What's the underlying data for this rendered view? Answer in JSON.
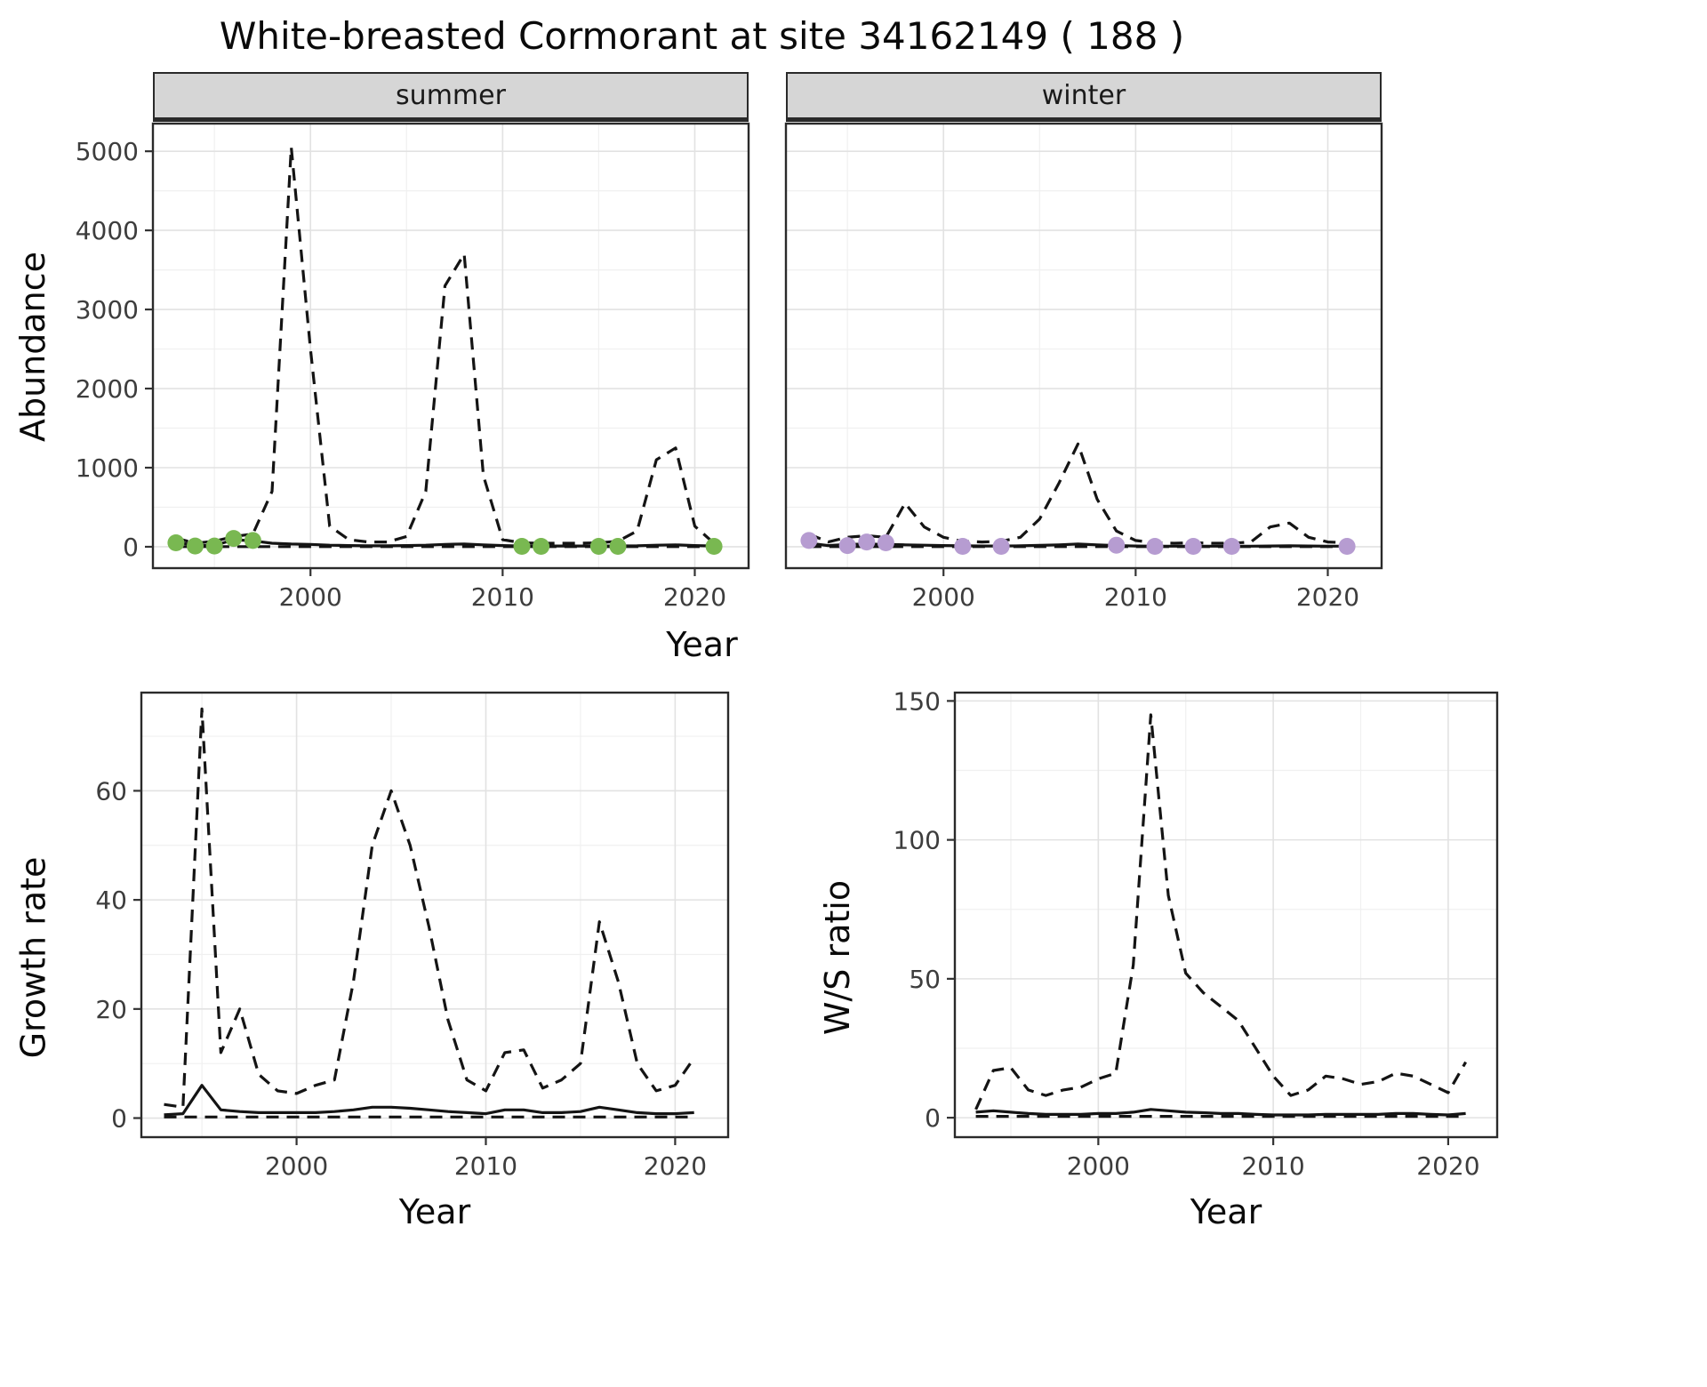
{
  "title": "White-breasted Cormorant at site 34162149 ( 188 )",
  "axis": {
    "shared_x_label": "Year"
  },
  "facets": [
    {
      "label": "summer"
    },
    {
      "label": "winter"
    }
  ],
  "colors": {
    "summer_point": "#79b851",
    "winter_point": "#b69cd1",
    "line": "#141414",
    "strip_background": "#d6d6d6",
    "grid_major": "#e2e2e2",
    "grid_minor": "#f0f0f0",
    "tick_label": "#3d3d3d"
  },
  "chart_data": [
    {
      "id": "abundance-summer",
      "type": "line",
      "facet": "summer",
      "xlabel": "Year",
      "ylabel": "Abundance",
      "x_domain": [
        1991.8,
        2022.8
      ],
      "y_domain": [
        -270,
        5350
      ],
      "x_ticks": [
        2000,
        2010,
        2020
      ],
      "x_minor": [
        1995,
        2005,
        2015
      ],
      "y_ticks": [
        0,
        1000,
        2000,
        3000,
        4000,
        5000
      ],
      "y_minor": [
        500,
        1500,
        2500,
        3500,
        4500
      ],
      "years": [
        1993,
        1994,
        1995,
        1996,
        1997,
        1998,
        1999,
        2000,
        2001,
        2002,
        2003,
        2004,
        2005,
        2006,
        2007,
        2008,
        2009,
        2010,
        2011,
        2012,
        2013,
        2014,
        2015,
        2016,
        2017,
        2018,
        2019,
        2020,
        2021
      ],
      "series": [
        {
          "name": "upper_ci",
          "style": "dashed",
          "values": [
            110,
            45,
            70,
            130,
            160,
            700,
            5050,
            2500,
            260,
            90,
            60,
            60,
            130,
            700,
            3300,
            3700,
            900,
            90,
            50,
            45,
            45,
            45,
            50,
            70,
            200,
            1100,
            1250,
            260,
            45
          ]
        },
        {
          "name": "lower_ci",
          "style": "dashed",
          "values": [
            2,
            2,
            2,
            2,
            2,
            2,
            2,
            2,
            2,
            2,
            2,
            2,
            2,
            2,
            2,
            2,
            2,
            2,
            2,
            2,
            2,
            2,
            2,
            2,
            2,
            2,
            2,
            2,
            2
          ]
        },
        {
          "name": "median",
          "style": "solid",
          "values": [
            60,
            15,
            15,
            90,
            75,
            45,
            35,
            30,
            20,
            15,
            12,
            12,
            15,
            20,
            30,
            35,
            25,
            15,
            10,
            10,
            10,
            10,
            10,
            10,
            12,
            20,
            25,
            15,
            10
          ]
        }
      ],
      "points": {
        "name": "observed_counts",
        "color": "#79b851",
        "x": [
          1993,
          1994,
          1995,
          1996,
          1997,
          2011,
          2012,
          2015,
          2016,
          2021
        ],
        "y": [
          50,
          10,
          10,
          105,
          80,
          5,
          5,
          5,
          5,
          5
        ]
      }
    },
    {
      "id": "abundance-winter",
      "type": "line",
      "facet": "winter",
      "xlabel": "Year",
      "ylabel": "Abundance",
      "x_domain": [
        1991.8,
        2022.8
      ],
      "y_domain": [
        -270,
        5350
      ],
      "x_ticks": [
        2000,
        2010,
        2020
      ],
      "x_minor": [
        1995,
        2005,
        2015
      ],
      "y_ticks": [
        0,
        1000,
        2000,
        3000,
        4000,
        5000
      ],
      "y_minor": [
        500,
        1500,
        2500,
        3500,
        4500
      ],
      "years": [
        1993,
        1994,
        1995,
        1996,
        1997,
        1998,
        1999,
        2000,
        2001,
        2002,
        2003,
        2004,
        2005,
        2006,
        2007,
        2008,
        2009,
        2010,
        2011,
        2012,
        2013,
        2014,
        2015,
        2016,
        2017,
        2018,
        2019,
        2020,
        2021
      ],
      "series": [
        {
          "name": "upper_ci",
          "style": "dashed",
          "values": [
            160,
            60,
            120,
            140,
            120,
            550,
            250,
            120,
            70,
            60,
            70,
            120,
            350,
            800,
            1300,
            600,
            200,
            80,
            50,
            45,
            50,
            45,
            45,
            60,
            250,
            300,
            120,
            60,
            50
          ]
        },
        {
          "name": "lower_ci",
          "style": "dashed",
          "values": [
            2,
            2,
            2,
            2,
            2,
            2,
            2,
            2,
            2,
            2,
            2,
            2,
            2,
            2,
            2,
            2,
            2,
            2,
            2,
            2,
            2,
            2,
            2,
            2,
            2,
            2,
            2,
            2,
            2
          ]
        },
        {
          "name": "median",
          "style": "solid",
          "values": [
            45,
            15,
            30,
            35,
            30,
            25,
            20,
            15,
            12,
            10,
            10,
            12,
            18,
            25,
            35,
            25,
            15,
            10,
            8,
            8,
            8,
            8,
            8,
            8,
            10,
            12,
            10,
            8,
            8
          ]
        }
      ],
      "points": {
        "name": "observed_counts",
        "color": "#b69cd1",
        "x": [
          1993,
          1995,
          1996,
          1997,
          2001,
          2003,
          2009,
          2011,
          2013,
          2015,
          2021
        ],
        "y": [
          80,
          15,
          60,
          50,
          5,
          5,
          20,
          5,
          5,
          5,
          5
        ]
      }
    },
    {
      "id": "growth-rate",
      "type": "line",
      "xlabel": "Year",
      "ylabel": "Growth rate",
      "x_domain": [
        1991.8,
        2022.8
      ],
      "y_domain": [
        -3.5,
        78
      ],
      "x_ticks": [
        2000,
        2010,
        2020
      ],
      "x_minor": [
        1995,
        2005,
        2015
      ],
      "y_ticks": [
        0,
        20,
        40,
        60
      ],
      "y_minor": [
        10,
        30,
        50,
        70
      ],
      "years": [
        1993,
        1994,
        1995,
        1996,
        1997,
        1998,
        1999,
        2000,
        2001,
        2002,
        2003,
        2004,
        2005,
        2006,
        2007,
        2008,
        2009,
        2010,
        2011,
        2012,
        2013,
        2014,
        2015,
        2016,
        2017,
        2018,
        2019,
        2020,
        2021
      ],
      "series": [
        {
          "name": "upper_ci",
          "style": "dashed",
          "values": [
            2.5,
            2,
            75,
            12,
            20,
            8,
            5,
            4.5,
            6,
            7,
            25,
            50,
            60,
            50,
            35,
            18,
            7,
            5,
            12,
            12.5,
            5.5,
            7,
            10,
            36,
            25,
            10,
            5,
            6,
            11
          ]
        },
        {
          "name": "lower_ci",
          "style": "dashed",
          "values": [
            0.2,
            0.2,
            0.2,
            0.2,
            0.2,
            0.2,
            0.2,
            0.2,
            0.2,
            0.2,
            0.2,
            0.2,
            0.2,
            0.2,
            0.2,
            0.2,
            0.2,
            0.2,
            0.2,
            0.2,
            0.2,
            0.2,
            0.2,
            0.2,
            0.2,
            0.2,
            0.2,
            0.2,
            0.2
          ]
        },
        {
          "name": "median",
          "style": "solid",
          "values": [
            0.6,
            0.8,
            6,
            1.5,
            1.2,
            1,
            1,
            1,
            1,
            1.2,
            1.5,
            2,
            2,
            1.8,
            1.5,
            1.2,
            1,
            0.8,
            1.5,
            1.5,
            1,
            1,
            1.2,
            2,
            1.5,
            1,
            0.8,
            0.8,
            1
          ]
        }
      ]
    },
    {
      "id": "ws-ratio",
      "type": "line",
      "xlabel": "Year",
      "ylabel": "W/S ratio",
      "x_domain": [
        1991.8,
        2022.8
      ],
      "y_domain": [
        -7,
        153
      ],
      "x_ticks": [
        2000,
        2010,
        2020
      ],
      "x_minor": [
        1995,
        2005,
        2015
      ],
      "y_ticks": [
        0,
        50,
        100,
        150
      ],
      "y_minor": [
        25,
        75,
        125
      ],
      "years": [
        1993,
        1994,
        1995,
        1996,
        1997,
        1998,
        1999,
        2000,
        2001,
        2002,
        2003,
        2004,
        2005,
        2006,
        2007,
        2008,
        2009,
        2010,
        2011,
        2012,
        2013,
        2014,
        2015,
        2016,
        2017,
        2018,
        2019,
        2020,
        2021
      ],
      "series": [
        {
          "name": "upper_ci",
          "style": "dashed",
          "values": [
            3,
            17,
            18,
            10,
            8,
            10,
            11,
            14,
            16,
            55,
            145,
            80,
            52,
            45,
            40,
            35,
            25,
            15,
            8,
            10,
            15,
            14,
            12,
            13,
            16,
            15,
            12,
            9,
            20
          ]
        },
        {
          "name": "lower_ci",
          "style": "dashed",
          "values": [
            0.5,
            0.5,
            0.5,
            0.5,
            0.5,
            0.5,
            0.5,
            0.5,
            0.5,
            0.5,
            0.5,
            0.5,
            0.5,
            0.5,
            0.5,
            0.5,
            0.5,
            0.5,
            0.5,
            0.5,
            0.5,
            0.5,
            0.5,
            0.5,
            0.5,
            0.5,
            0.5,
            0.5,
            0.5
          ]
        },
        {
          "name": "median",
          "style": "solid",
          "values": [
            2,
            2.5,
            2,
            1.5,
            1.2,
            1.2,
            1.2,
            1.5,
            1.5,
            2,
            3,
            2.5,
            2,
            1.8,
            1.5,
            1.5,
            1.2,
            1,
            1,
            1,
            1.2,
            1.2,
            1.2,
            1.2,
            1.5,
            1.5,
            1.2,
            1,
            1.5
          ]
        }
      ]
    }
  ]
}
